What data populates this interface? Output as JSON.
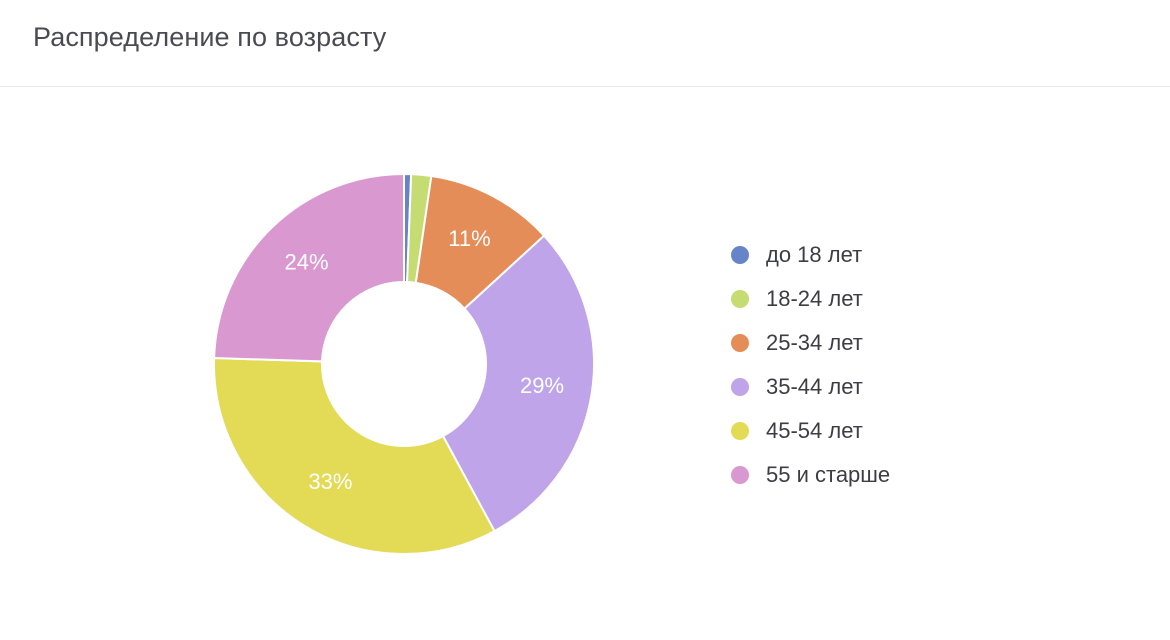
{
  "header": {
    "title": "Распределение по возрасту"
  },
  "chart_data": {
    "type": "pie",
    "title": "Распределение по возрасту",
    "donut": true,
    "categories": [
      "до 18 лет",
      "18-24 лет",
      "25-34 лет",
      "35-44 лет",
      "45-54 лет",
      "55 и старше"
    ],
    "values": [
      0.6,
      1.7,
      10.9,
      28.9,
      33.4,
      24.5
    ],
    "data_labels": [
      "",
      "",
      "11%",
      "29%",
      "33%",
      "24%"
    ],
    "colors": [
      "#6685c9",
      "#c5dc72",
      "#e58d58",
      "#bfa4e9",
      "#e3da56",
      "#da98d1"
    ],
    "legend_position": "right"
  }
}
